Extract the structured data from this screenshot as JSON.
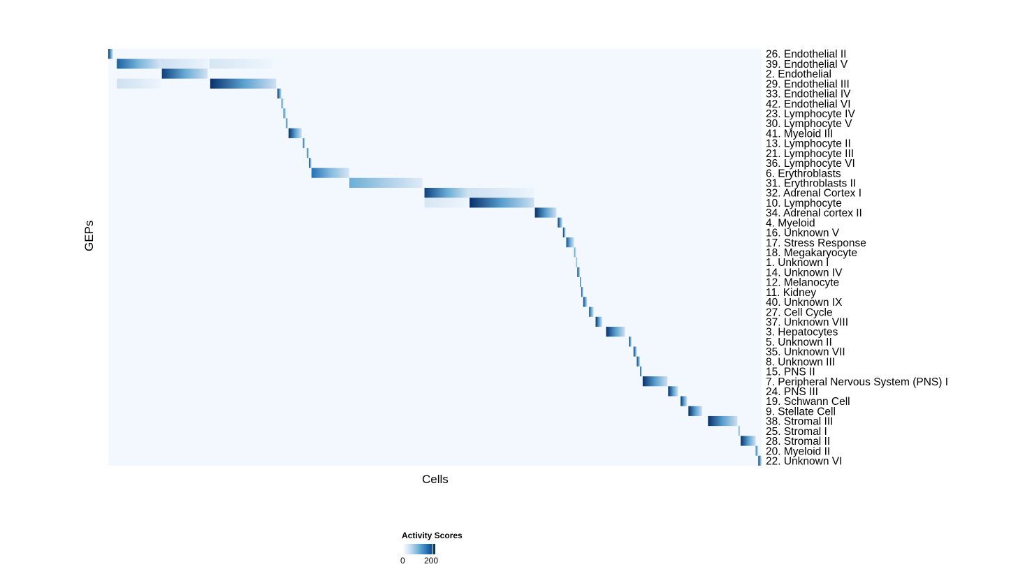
{
  "chart_data": {
    "type": "heatmap",
    "xlabel": "Cells",
    "ylabel": "GEPs",
    "legend": {
      "title": "Activity Scores",
      "ticks": [
        "0",
        "200"
      ],
      "range": [
        0,
        200
      ],
      "placement": "bottom"
    },
    "colors": {
      "low": "#f7fbff",
      "mid": "#6baed6",
      "high": "#08306b"
    },
    "rows": [
      "26.  Endothelial II",
      "39.  Endothelial V",
      "2.  Endothelial",
      "29.  Endothelial III",
      "33.  Endothelial IV",
      "42.  Endothelial VI",
      "23.  Lymphocyte IV",
      "30.  Lymphocyte V",
      "41.  Myeloid III",
      "13.  Lymphocyte II",
      "21.  Lymphocyte III",
      "36.  Lymphocyte VI",
      "6.  Erythroblasts",
      "31.  Erythroblasts II",
      "32.  Adrenal Cortex I",
      "10.  Lymphocyte",
      "34.  Adrenal cortex II",
      "4.  Myeloid",
      "16.  Unknown V",
      "17.  Stress Response",
      "18.  Megakaryocyte",
      "1.  Unknown I",
      "14.  Unknown IV",
      "12.  Melanocyte",
      "11.  Kidney",
      "40.  Unknown IX",
      "27.  Cell Cycle",
      "37.  Unknown VIII",
      "3.  Hepatocytes",
      "5.  Unknown II",
      "35.  Unknown VII",
      "8.  Unknown III",
      "15.  PNS II",
      "7.  Peripheral Nervous System (PNS) I",
      "24.  PNS III",
      "19.  Schwann Cell",
      "9.  Stellate Cell",
      "38.  Stromal III",
      "25.  Stromal I",
      "28.  Stromal II",
      "20.  Myeloid II",
      "22.  Unknown VI"
    ],
    "blocks": [
      {
        "row": 0,
        "start": 0.0,
        "end": 0.007,
        "peak": 200
      },
      {
        "row": 1,
        "start": 0.013,
        "end": 0.08,
        "peak": 170
      },
      {
        "row": 1,
        "start": 0.08,
        "end": 0.155,
        "peak": 50
      },
      {
        "row": 1,
        "start": 0.155,
        "end": 0.252,
        "peak": 40
      },
      {
        "row": 2,
        "start": 0.082,
        "end": 0.152,
        "peak": 190
      },
      {
        "row": 3,
        "start": 0.156,
        "end": 0.257,
        "peak": 200
      },
      {
        "row": 3,
        "start": 0.013,
        "end": 0.08,
        "peak": 50
      },
      {
        "row": 4,
        "start": 0.259,
        "end": 0.265,
        "peak": 200
      },
      {
        "row": 5,
        "start": 0.265,
        "end": 0.268,
        "peak": 160
      },
      {
        "row": 6,
        "start": 0.268,
        "end": 0.272,
        "peak": 160
      },
      {
        "row": 7,
        "start": 0.272,
        "end": 0.275,
        "peak": 170
      },
      {
        "row": 8,
        "start": 0.276,
        "end": 0.296,
        "peak": 200
      },
      {
        "row": 9,
        "start": 0.298,
        "end": 0.301,
        "peak": 180
      },
      {
        "row": 10,
        "start": 0.304,
        "end": 0.307,
        "peak": 180
      },
      {
        "row": 11,
        "start": 0.307,
        "end": 0.311,
        "peak": 200
      },
      {
        "row": 12,
        "start": 0.311,
        "end": 0.369,
        "peak": 160
      },
      {
        "row": 13,
        "start": 0.369,
        "end": 0.481,
        "peak": 120
      },
      {
        "row": 14,
        "start": 0.484,
        "end": 0.551,
        "peak": 190
      },
      {
        "row": 14,
        "start": 0.551,
        "end": 0.652,
        "peak": 50
      },
      {
        "row": 15,
        "start": 0.553,
        "end": 0.652,
        "peak": 200
      },
      {
        "row": 15,
        "start": 0.484,
        "end": 0.551,
        "peak": 40
      },
      {
        "row": 16,
        "start": 0.653,
        "end": 0.686,
        "peak": 200
      },
      {
        "row": 17,
        "start": 0.688,
        "end": 0.695,
        "peak": 200
      },
      {
        "row": 18,
        "start": 0.696,
        "end": 0.7,
        "peak": 200
      },
      {
        "row": 19,
        "start": 0.701,
        "end": 0.713,
        "peak": 180
      },
      {
        "row": 20,
        "start": 0.713,
        "end": 0.716,
        "peak": 140
      },
      {
        "row": 21,
        "start": 0.716,
        "end": 0.718,
        "peak": 140
      },
      {
        "row": 22,
        "start": 0.718,
        "end": 0.722,
        "peak": 200
      },
      {
        "row": 23,
        "start": 0.722,
        "end": 0.724,
        "peak": 180
      },
      {
        "row": 24,
        "start": 0.724,
        "end": 0.727,
        "peak": 200
      },
      {
        "row": 25,
        "start": 0.727,
        "end": 0.733,
        "peak": 200
      },
      {
        "row": 26,
        "start": 0.736,
        "end": 0.743,
        "peak": 180
      },
      {
        "row": 27,
        "start": 0.746,
        "end": 0.756,
        "peak": 200
      },
      {
        "row": 28,
        "start": 0.762,
        "end": 0.791,
        "peak": 200
      },
      {
        "row": 29,
        "start": 0.797,
        "end": 0.801,
        "peak": 200
      },
      {
        "row": 30,
        "start": 0.804,
        "end": 0.809,
        "peak": 200
      },
      {
        "row": 31,
        "start": 0.809,
        "end": 0.814,
        "peak": 200
      },
      {
        "row": 32,
        "start": 0.814,
        "end": 0.817,
        "peak": 180
      },
      {
        "row": 33,
        "start": 0.818,
        "end": 0.856,
        "peak": 200
      },
      {
        "row": 34,
        "start": 0.857,
        "end": 0.872,
        "peak": 200
      },
      {
        "row": 35,
        "start": 0.876,
        "end": 0.886,
        "peak": 200
      },
      {
        "row": 36,
        "start": 0.888,
        "end": 0.909,
        "peak": 200
      },
      {
        "row": 37,
        "start": 0.918,
        "end": 0.963,
        "peak": 200
      },
      {
        "row": 38,
        "start": 0.965,
        "end": 0.967,
        "peak": 150
      },
      {
        "row": 39,
        "start": 0.968,
        "end": 0.991,
        "peak": 200
      },
      {
        "row": 40,
        "start": 0.991,
        "end": 0.995,
        "peak": 160
      },
      {
        "row": 41,
        "start": 0.995,
        "end": 1.0,
        "peak": 200
      }
    ]
  }
}
